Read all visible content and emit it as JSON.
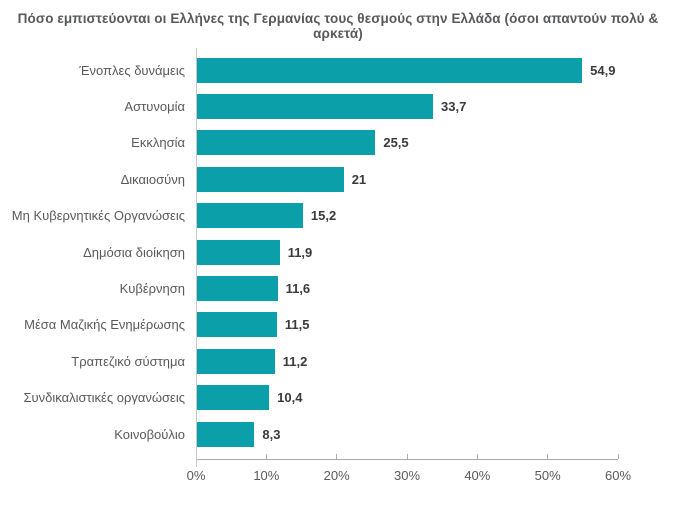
{
  "title": "Πόσο εμπιστεύονται οι Ελλήνες της Γερμανίας τους θεσμούς στην Ελλάδα (όσοι απαντούν πολύ & αρκετά)",
  "colors": {
    "bar": "#0BA0A9",
    "title_text": "#58595B",
    "category_text": "#58595B",
    "value_text": "#3A3A3A",
    "axis": "#ABABAB"
  },
  "chart_data": {
    "type": "bar",
    "orientation": "horizontal",
    "title": "Πόσο εμπιστεύονται οι Ελλήνες της Γερμανίας τους θεσμούς στην Ελλάδα (όσοι απαντούν πολύ & αρκετά)",
    "categories": [
      "Ένοπλες δυνάμεις",
      "Αστυνομία",
      "Εκκλησία",
      "Δικαιοσύνη",
      "Μη Κυβερνητικές Οργανώσεις",
      "Δημόσια διοίκηση",
      "Κυβέρνηση",
      "Μέσα Μαζικής Ενημέρωσης",
      "Τραπεζικό σύστημα",
      "Συνδικαλιστικές οργανώσεις",
      "Κοινοβούλιο"
    ],
    "values": [
      54.9,
      33.7,
      25.5,
      21,
      15.2,
      11.9,
      11.6,
      11.5,
      11.2,
      10.4,
      8.3
    ],
    "value_labels": [
      "54,9",
      "33,7",
      "25,5",
      "21",
      "15,2",
      "11,9",
      "11,6",
      "11,5",
      "11,2",
      "10,4",
      "8,3"
    ],
    "xlabel": "",
    "ylabel": "",
    "x_ticks": [
      "0%",
      "10%",
      "20%",
      "30%",
      "40%",
      "50%",
      "60%"
    ],
    "x_tick_values": [
      0,
      10,
      20,
      30,
      40,
      50,
      60
    ],
    "xlim": [
      0,
      60
    ],
    "grid": false,
    "legend_position": "none"
  }
}
